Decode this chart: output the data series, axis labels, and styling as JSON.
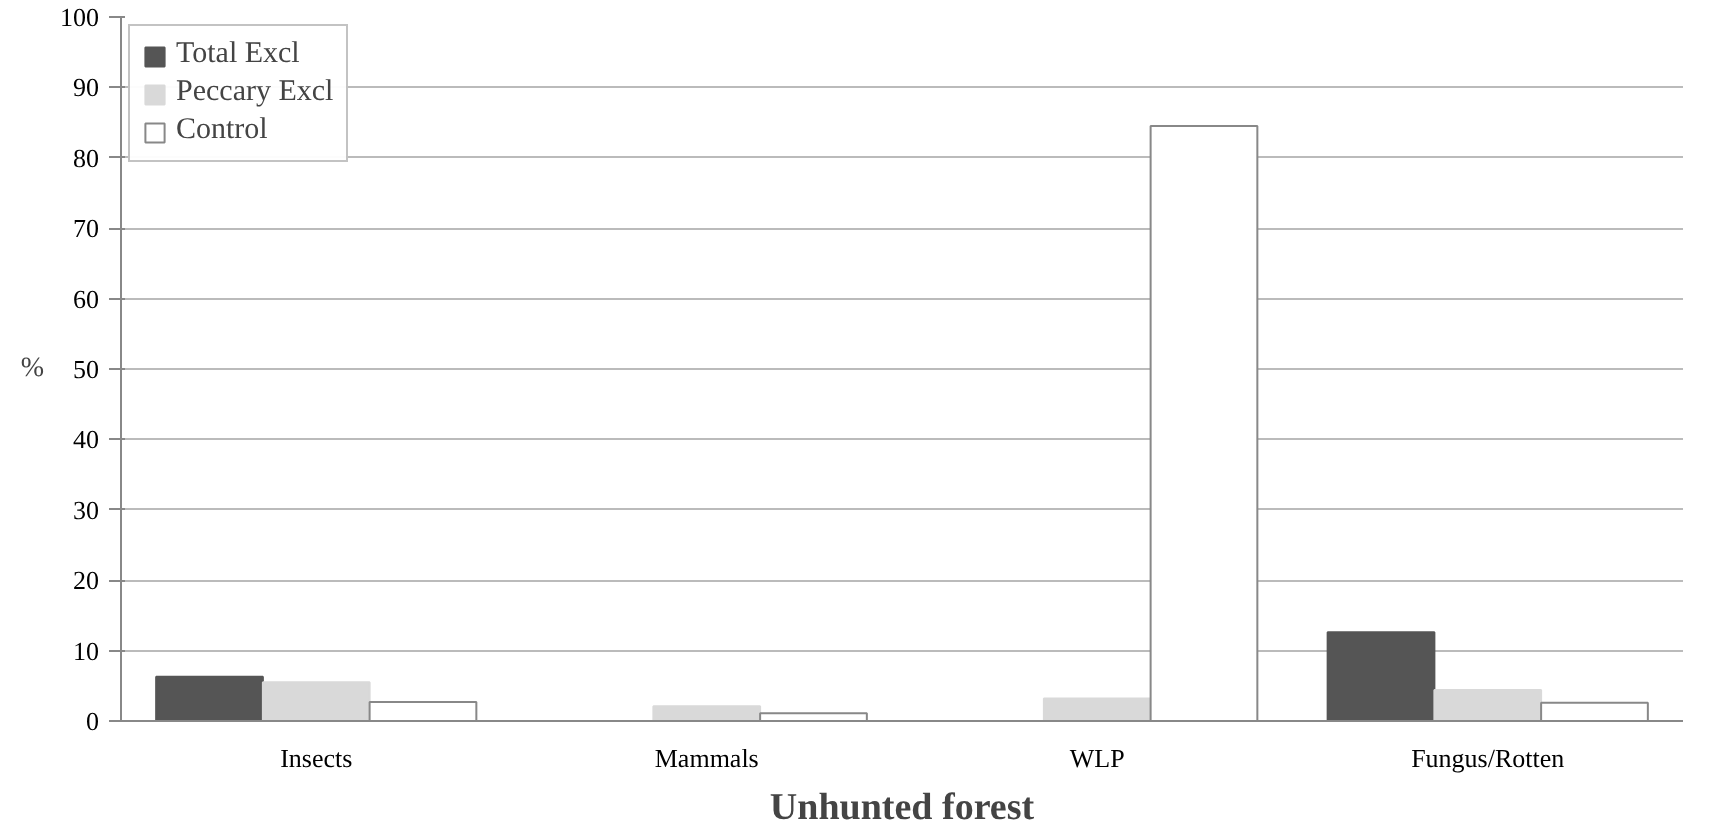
{
  "chart_data": {
    "type": "bar",
    "xlabel": "Unhunted forest",
    "ylabel": "%",
    "categories": [
      "Insects",
      "Mammals",
      "WLP",
      "Fungus/Rotten"
    ],
    "series": [
      {
        "name": "Total Excl",
        "color": "#555555",
        "values": [
          6.3,
          0,
          0,
          12.6
        ]
      },
      {
        "name": "Peccary Excl",
        "color": "#d9d9d9",
        "values": [
          5.5,
          2.1,
          3.2,
          4.4
        ]
      },
      {
        "name": "Control",
        "color": "#ffffff",
        "values": [
          2.7,
          1.1,
          84.5,
          2.6
        ]
      }
    ],
    "ylim": [
      0,
      100
    ],
    "yticks": [
      0,
      10,
      20,
      30,
      40,
      50,
      60,
      70,
      80,
      90,
      100
    ],
    "grid": "y",
    "legend": "top left"
  }
}
